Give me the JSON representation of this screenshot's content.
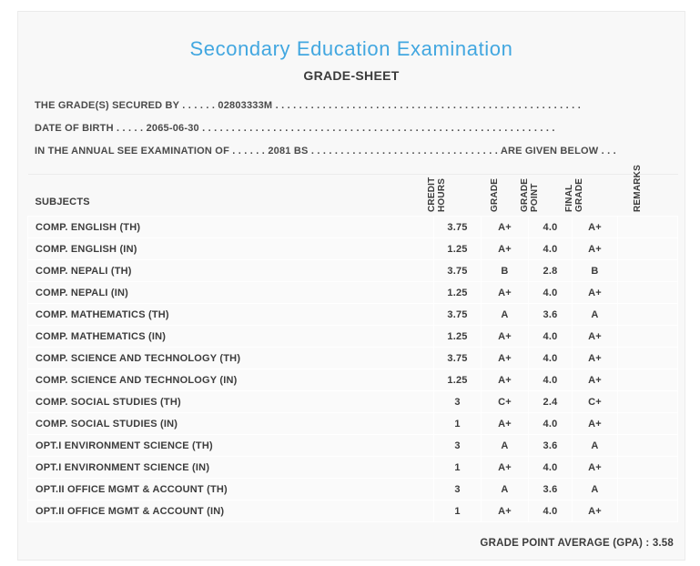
{
  "colors": {
    "title_accent": "#42a7e0",
    "panel_background": "#f8f8f8",
    "text_dark": "#3c3c3c"
  },
  "page": {
    "title": "Secondary Education Examination",
    "subtitle": "GRADE-SHEET"
  },
  "info": {
    "line1": {
      "label": "THE GRADE(S) SECURED BY",
      "leader": ". . . . . .",
      "value": "02803333M",
      "trailer": ". . . . . . . . . . . . . . . . . . . . . . . . . . . . . . . . . . . . . . . . . . . . . . . . . . . ."
    },
    "line2": {
      "label": "DATE OF BIRTH",
      "leader": ". . . . .",
      "value": "2065-06-30",
      "trailer": ". . . . . . . . . . . . . . . . . . . . . . . . . . . . . . . . . . . . . . . . . . . . . . . . . . . . . . . . . . . ."
    },
    "line3": {
      "label": "IN THE ANNUAL SEE EXAMINATION OF",
      "leader": ". . . . . .",
      "value": "2081 BS",
      "mid_dots": ". . . . . . . . . . . . . . . . . . . . . . . . . . . . . . . .",
      "tail": "ARE GIVEN BELOW",
      "tail_dots": ". . ."
    }
  },
  "table": {
    "columns": {
      "subjects": "SUBJECTS",
      "credit_hours": "CREDIT HOURS",
      "grade": "GRADE",
      "grade_point": "GRADE POINT",
      "final_grade": "FINAL GRADE",
      "remarks": "REMARKS"
    },
    "rows": [
      {
        "subject": "COMP. ENGLISH (TH)",
        "credit_hours": "3.75",
        "grade": "A+",
        "grade_point": "4.0",
        "final_grade": "A+",
        "remarks": ""
      },
      {
        "subject": "COMP. ENGLISH (IN)",
        "credit_hours": "1.25",
        "grade": "A+",
        "grade_point": "4.0",
        "final_grade": "A+",
        "remarks": ""
      },
      {
        "subject": "COMP. NEPALI (TH)",
        "credit_hours": "3.75",
        "grade": "B",
        "grade_point": "2.8",
        "final_grade": "B",
        "remarks": ""
      },
      {
        "subject": "COMP. NEPALI (IN)",
        "credit_hours": "1.25",
        "grade": "A+",
        "grade_point": "4.0",
        "final_grade": "A+",
        "remarks": ""
      },
      {
        "subject": "COMP. MATHEMATICS (TH)",
        "credit_hours": "3.75",
        "grade": "A",
        "grade_point": "3.6",
        "final_grade": "A",
        "remarks": ""
      },
      {
        "subject": "COMP. MATHEMATICS (IN)",
        "credit_hours": "1.25",
        "grade": "A+",
        "grade_point": "4.0",
        "final_grade": "A+",
        "remarks": ""
      },
      {
        "subject": "COMP. SCIENCE AND TECHNOLOGY (TH)",
        "credit_hours": "3.75",
        "grade": "A+",
        "grade_point": "4.0",
        "final_grade": "A+",
        "remarks": ""
      },
      {
        "subject": "COMP. SCIENCE AND TECHNOLOGY (IN)",
        "credit_hours": "1.25",
        "grade": "A+",
        "grade_point": "4.0",
        "final_grade": "A+",
        "remarks": ""
      },
      {
        "subject": "COMP. SOCIAL STUDIES (TH)",
        "credit_hours": "3",
        "grade": "C+",
        "grade_point": "2.4",
        "final_grade": "C+",
        "remarks": ""
      },
      {
        "subject": "COMP. SOCIAL STUDIES (IN)",
        "credit_hours": "1",
        "grade": "A+",
        "grade_point": "4.0",
        "final_grade": "A+",
        "remarks": ""
      },
      {
        "subject": "OPT.I ENVIRONMENT SCIENCE (TH)",
        "credit_hours": "3",
        "grade": "A",
        "grade_point": "3.6",
        "final_grade": "A",
        "remarks": ""
      },
      {
        "subject": "OPT.I ENVIRONMENT SCIENCE (IN)",
        "credit_hours": "1",
        "grade": "A+",
        "grade_point": "4.0",
        "final_grade": "A+",
        "remarks": ""
      },
      {
        "subject": "OPT.II OFFICE MGMT & ACCOUNT (TH)",
        "credit_hours": "3",
        "grade": "A",
        "grade_point": "3.6",
        "final_grade": "A",
        "remarks": ""
      },
      {
        "subject": "OPT.II OFFICE MGMT & ACCOUNT (IN)",
        "credit_hours": "1",
        "grade": "A+",
        "grade_point": "4.0",
        "final_grade": "A+",
        "remarks": ""
      }
    ]
  },
  "footer": {
    "gpa_line": "GRADE POINT AVERAGE (GPA) : 3.58"
  }
}
